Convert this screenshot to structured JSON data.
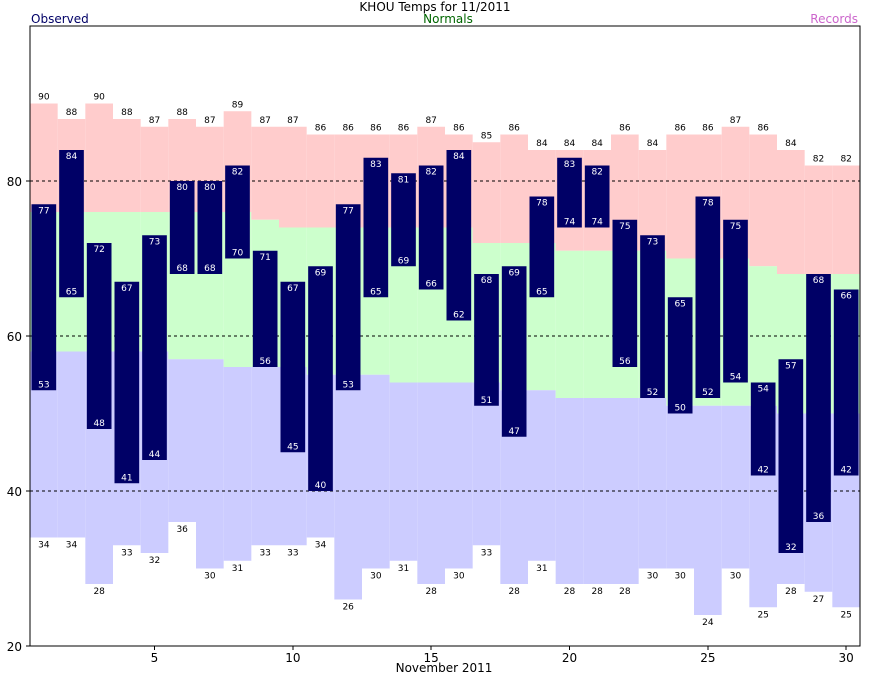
{
  "chart_data": {
    "type": "bar",
    "title": "KHOU Temps for 11/2011",
    "xlabel": "November 2011",
    "ylabel": "",
    "legend": {
      "observed": "Observed",
      "normals": "Normals",
      "records": "Records"
    },
    "days": [
      1,
      2,
      3,
      4,
      5,
      6,
      7,
      8,
      9,
      10,
      11,
      12,
      13,
      14,
      15,
      16,
      17,
      18,
      19,
      20,
      21,
      22,
      23,
      24,
      25,
      26,
      27,
      28,
      29,
      30
    ],
    "record_high": [
      90,
      88,
      90,
      88,
      87,
      88,
      87,
      89,
      87,
      87,
      86,
      86,
      86,
      86,
      87,
      86,
      85,
      86,
      84,
      84,
      84,
      86,
      84,
      86,
      86,
      87,
      86,
      84,
      82,
      82
    ],
    "record_low": [
      34,
      34,
      28,
      33,
      32,
      36,
      30,
      31,
      33,
      33,
      34,
      26,
      30,
      31,
      28,
      30,
      33,
      28,
      31,
      28,
      28,
      28,
      30,
      30,
      24,
      30,
      25,
      28,
      27,
      25
    ],
    "normal_high": [
      76,
      76,
      76,
      76,
      76,
      76,
      76,
      76,
      75,
      74,
      74,
      74,
      74,
      74,
      74,
      74,
      72,
      72,
      72,
      71,
      71,
      71,
      71,
      70,
      70,
      70,
      69,
      68,
      68,
      68
    ],
    "normal_low": [
      58,
      58,
      58,
      58,
      58,
      57,
      57,
      56,
      56,
      56,
      55,
      55,
      55,
      54,
      54,
      54,
      54,
      53,
      53,
      52,
      52,
      52,
      52,
      51,
      51,
      51,
      51,
      50,
      50,
      50
    ],
    "observed_high": [
      77,
      84,
      72,
      67,
      73,
      80,
      80,
      82,
      71,
      67,
      69,
      77,
      83,
      81,
      82,
      84,
      68,
      69,
      78,
      83,
      82,
      75,
      73,
      65,
      78,
      75,
      54,
      57,
      68,
      66
    ],
    "observed_low": [
      53,
      65,
      48,
      41,
      44,
      68,
      68,
      70,
      56,
      45,
      40,
      53,
      65,
      69,
      66,
      62,
      51,
      47,
      65,
      74,
      74,
      56,
      52,
      50,
      52,
      54,
      42,
      32,
      36,
      42
    ],
    "x_ticks": [
      5,
      10,
      15,
      20,
      25,
      30
    ],
    "y_ticks": [
      20,
      40,
      60,
      80
    ],
    "ylim": [
      20,
      100
    ],
    "xlim": [
      0.5,
      30.5
    ],
    "grid": "dashed horizontal lines at 40, 60, 80",
    "colors": {
      "records": "#ffcccc",
      "normals": "#ccffcc",
      "below_normal": "#ccccff",
      "observed_bar": "#000066",
      "observed_text": "#ffffff",
      "observed_legend": "#000066",
      "normals_legend": "#006600",
      "records_legend": "#cc66cc"
    }
  }
}
